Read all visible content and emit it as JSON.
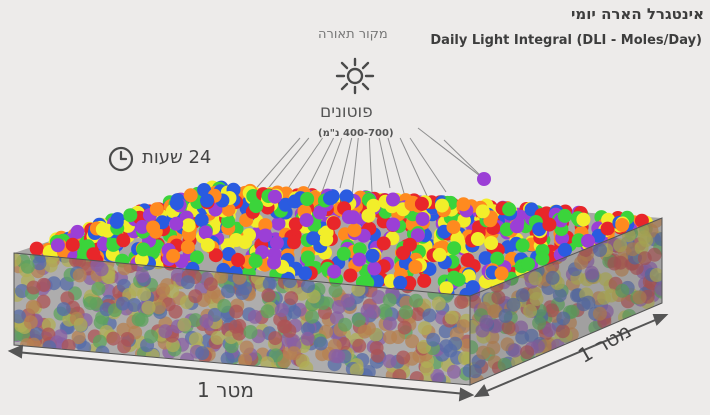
{
  "title_hebrew": "אינטגרל הארה יומי",
  "title_english": "Daily Light Integral (DLI - Moles/Day)",
  "light_source_label": "מקור תאורה",
  "photons_label": "פוטונים",
  "wavelength_label": "(400-700 נ\"מ)",
  "duration_label": "24 שעות",
  "width_label": "מטר 1",
  "depth_label": "מטר 1",
  "icons": [
    "sun-icon",
    "clock-icon"
  ],
  "colors": {
    "background": "#edebea",
    "box": "#8a8a8a",
    "photon_palette": [
      "#e8262a",
      "#2a5be0",
      "#3bd43b",
      "#f2ee2a",
      "#9b3fd6",
      "#ff8a1f"
    ]
  }
}
